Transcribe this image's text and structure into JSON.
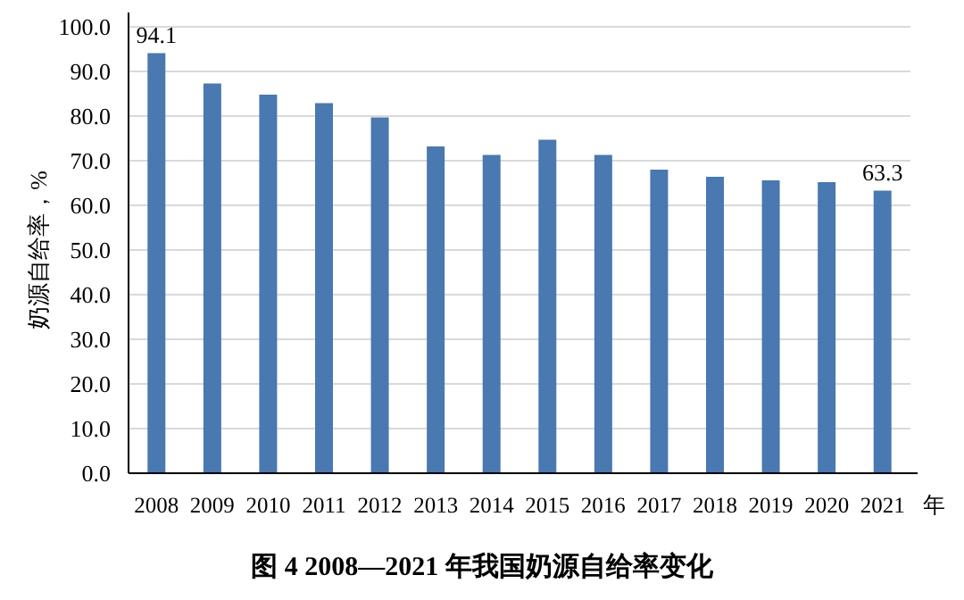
{
  "chart_data": {
    "type": "bar",
    "title": "图 4  2008—2021 年我国奶源自给率变化",
    "xlabel": "年",
    "ylabel": "奶源自给率，%",
    "categories": [
      "2008",
      "2009",
      "2010",
      "2011",
      "2012",
      "2013",
      "2014",
      "2015",
      "2016",
      "2017",
      "2018",
      "2019",
      "2020",
      "2021"
    ],
    "values": [
      94.1,
      87.3,
      84.8,
      82.9,
      79.7,
      73.2,
      71.3,
      74.7,
      71.3,
      68.0,
      66.4,
      65.6,
      65.2,
      63.3
    ],
    "value_labels": [
      "94.1",
      null,
      null,
      null,
      null,
      null,
      null,
      null,
      null,
      null,
      null,
      null,
      null,
      "63.3"
    ],
    "color": "#4a78b0",
    "ylim": [
      0,
      100
    ],
    "yticks": [
      {
        "value": 0,
        "label": "0.0"
      },
      {
        "value": 10,
        "label": "10.0"
      },
      {
        "value": 20,
        "label": "20.0"
      },
      {
        "value": 30,
        "label": "30.0"
      },
      {
        "value": 40,
        "label": "40.0"
      },
      {
        "value": 50,
        "label": "50.0"
      },
      {
        "value": 60,
        "label": "60.0"
      },
      {
        "value": 70,
        "label": "70.0"
      },
      {
        "value": 80,
        "label": "80.0"
      },
      {
        "value": 90,
        "label": "90.0"
      },
      {
        "value": 100,
        "label": "100.0"
      }
    ],
    "grid": "y"
  }
}
